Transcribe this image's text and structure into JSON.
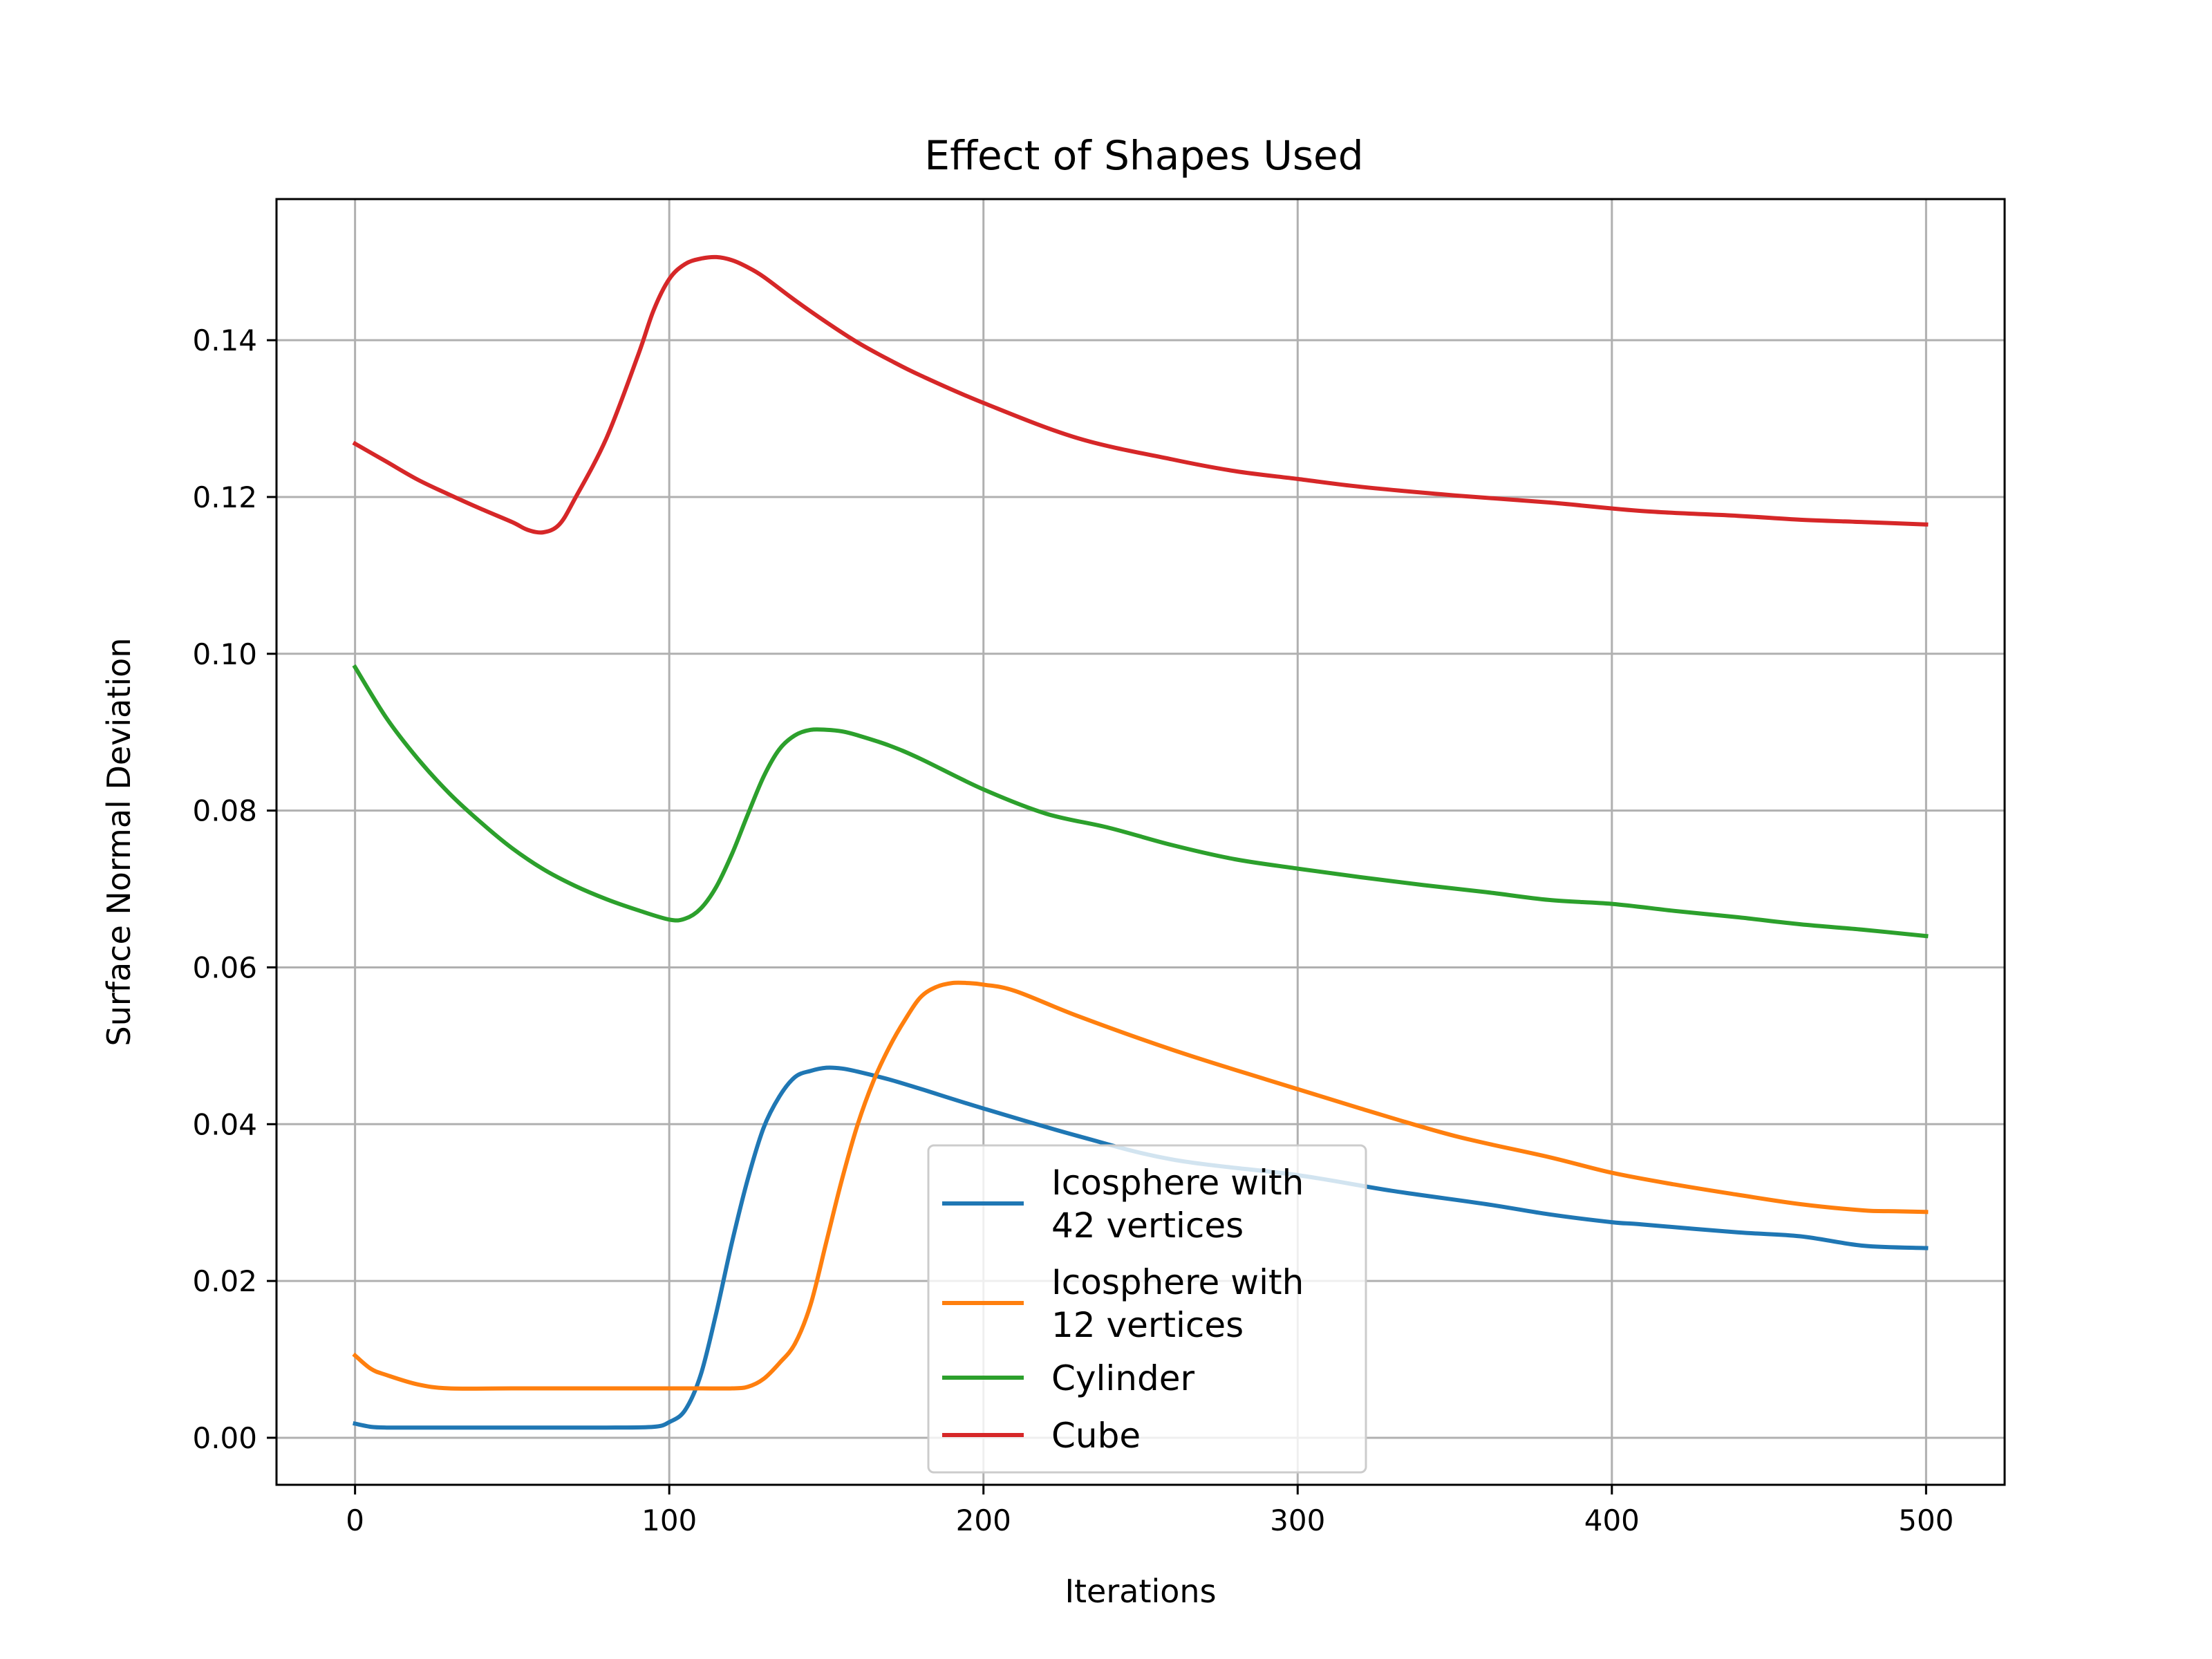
{
  "chart_data": {
    "type": "line",
    "title": "Effect of Shapes Used",
    "xlabel": "Iterations",
    "ylabel": "Surface Normal Deviation",
    "xlim": [
      -25,
      525
    ],
    "ylim": [
      -0.006,
      0.158
    ],
    "xticks": [
      0,
      100,
      200,
      300,
      400,
      500
    ],
    "xtick_labels": [
      "0",
      "100",
      "200",
      "300",
      "400",
      "500"
    ],
    "yticks": [
      0.0,
      0.02,
      0.04,
      0.06,
      0.08,
      0.1,
      0.12,
      0.14
    ],
    "ytick_labels": [
      "0.00",
      "0.02",
      "0.04",
      "0.06",
      "0.08",
      "0.10",
      "0.12",
      "0.14"
    ],
    "grid": true,
    "legend": {
      "position": "lower-center"
    },
    "series": [
      {
        "name": "Icosphere with\n42 vertices",
        "color": "#1f77b4",
        "x": [
          0,
          5,
          10,
          20,
          40,
          60,
          80,
          95,
          100,
          105,
          110,
          115,
          120,
          125,
          130,
          135,
          140,
          145,
          150,
          155,
          160,
          170,
          180,
          200,
          230,
          260,
          300,
          330,
          360,
          380,
          400,
          410,
          440,
          460,
          480,
          500
        ],
        "y": [
          0.0018,
          0.0014,
          0.0013,
          0.0013,
          0.0013,
          0.0013,
          0.0013,
          0.0014,
          0.002,
          0.0035,
          0.008,
          0.016,
          0.025,
          0.033,
          0.0395,
          0.0435,
          0.046,
          0.0468,
          0.0472,
          0.0471,
          0.0467,
          0.0457,
          0.0445,
          0.042,
          0.0385,
          0.0355,
          0.0335,
          0.0315,
          0.0298,
          0.0285,
          0.0275,
          0.0272,
          0.0262,
          0.0257,
          0.0245,
          0.0242
        ]
      },
      {
        "name": "Icosphere with\n12 vertices",
        "color": "#ff7f0e",
        "x": [
          0,
          5,
          10,
          20,
          30,
          50,
          80,
          100,
          110,
          120,
          125,
          130,
          135,
          140,
          145,
          150,
          155,
          160,
          165,
          170,
          175,
          180,
          185,
          190,
          195,
          200,
          210,
          230,
          260,
          290,
          320,
          350,
          380,
          400,
          420,
          440,
          460,
          480,
          490,
          500
        ],
        "y": [
          0.0105,
          0.0088,
          0.008,
          0.0068,
          0.0063,
          0.0063,
          0.0063,
          0.0063,
          0.0063,
          0.0063,
          0.0065,
          0.0075,
          0.0095,
          0.012,
          0.017,
          0.025,
          0.033,
          0.04,
          0.0455,
          0.0498,
          0.0533,
          0.0562,
          0.0575,
          0.058,
          0.058,
          0.0578,
          0.057,
          0.0538,
          0.0495,
          0.0457,
          0.042,
          0.0385,
          0.0358,
          0.0338,
          0.0323,
          0.031,
          0.0298,
          0.029,
          0.0289,
          0.0288
        ]
      },
      {
        "name": "Cylinder",
        "color": "#2ca02c",
        "x": [
          0,
          10,
          20,
          30,
          40,
          50,
          60,
          70,
          80,
          90,
          100,
          105,
          110,
          115,
          120,
          125,
          130,
          135,
          140,
          145,
          150,
          155,
          160,
          170,
          180,
          200,
          220,
          240,
          260,
          280,
          300,
          320,
          340,
          360,
          380,
          400,
          420,
          440,
          460,
          480,
          500
        ],
        "y": [
          0.0983,
          0.0918,
          0.0866,
          0.0822,
          0.0785,
          0.0752,
          0.0725,
          0.0704,
          0.0687,
          0.0673,
          0.0661,
          0.0662,
          0.0675,
          0.0703,
          0.0745,
          0.0795,
          0.0843,
          0.0878,
          0.0896,
          0.0903,
          0.0903,
          0.0901,
          0.0896,
          0.0883,
          0.0866,
          0.0827,
          0.0796,
          0.0778,
          0.0756,
          0.0738,
          0.0726,
          0.0715,
          0.0705,
          0.0696,
          0.0686,
          0.0681,
          0.0672,
          0.0664,
          0.0655,
          0.0648,
          0.064
        ]
      },
      {
        "name": "Cube",
        "color": "#d62728",
        "x": [
          0,
          10,
          20,
          30,
          40,
          50,
          55,
          60,
          65,
          70,
          80,
          90,
          95,
          100,
          105,
          110,
          115,
          120,
          125,
          130,
          140,
          150,
          160,
          170,
          180,
          200,
          230,
          260,
          280,
          300,
          320,
          350,
          380,
          410,
          440,
          460,
          480,
          500
        ],
        "y": [
          0.1268,
          0.1245,
          0.1222,
          0.1203,
          0.1185,
          0.1168,
          0.1158,
          0.1155,
          0.1165,
          0.1198,
          0.1275,
          0.138,
          0.1438,
          0.1478,
          0.1497,
          0.1504,
          0.1506,
          0.1502,
          0.1493,
          0.1481,
          0.1451,
          0.1423,
          0.1397,
          0.1375,
          0.1355,
          0.132,
          0.1275,
          0.1248,
          0.1233,
          0.1223,
          0.1213,
          0.1202,
          0.1193,
          0.1182,
          0.1176,
          0.1171,
          0.1168,
          0.1165
        ]
      }
    ]
  }
}
